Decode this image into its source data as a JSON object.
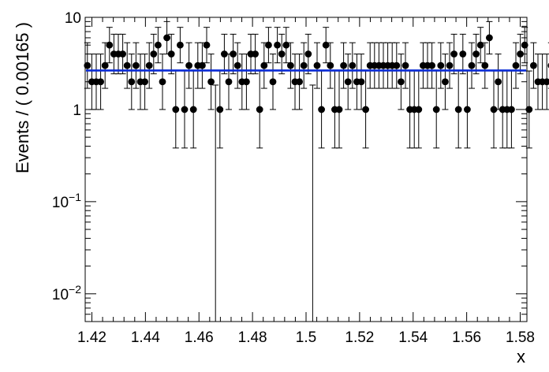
{
  "chart_data": {
    "type": "scatter",
    "title": "",
    "xlabel": "x",
    "ylabel": "Events / ( 0.00165 )",
    "xlim": [
      1.4175,
      1.5825
    ],
    "ylim": [
      0.005,
      10
    ],
    "yscale": "log",
    "grid": false,
    "x_tick_labels": [
      "1.42",
      "1.44",
      "1.46",
      "1.48",
      "1.5",
      "1.52",
      "1.54",
      "1.56",
      "1.58"
    ],
    "x_tick_values": [
      1.42,
      1.44,
      1.46,
      1.48,
      1.5,
      1.52,
      1.54,
      1.56,
      1.58
    ],
    "y_tick_labels": [
      {
        "base": "10",
        "exp": "",
        "value": 10
      },
      {
        "base": "1",
        "exp": "",
        "value": 1
      },
      {
        "base": "10",
        "exp": "−1",
        "value": 0.1
      },
      {
        "base": "10",
        "exp": "−2",
        "value": 0.01
      }
    ],
    "bin_width": 0.00165,
    "x_start": 1.418325,
    "counts": [
      3,
      2,
      2,
      2,
      3,
      5,
      4,
      4,
      4,
      3,
      2,
      3,
      2,
      2,
      3,
      4,
      5,
      2,
      6,
      4,
      1,
      5,
      1,
      3,
      1,
      3,
      3,
      5,
      2,
      0,
      1,
      4,
      2,
      4,
      3,
      2,
      2,
      4,
      4,
      1,
      3,
      5,
      2,
      5,
      4,
      5,
      3,
      2,
      2,
      3,
      4,
      0,
      3,
      1,
      5,
      3,
      1,
      1,
      3,
      2,
      3,
      2,
      2,
      1,
      3,
      3,
      3,
      3,
      3,
      3,
      3,
      2,
      3,
      1,
      1,
      1,
      3,
      3,
      3,
      1,
      3,
      2,
      3,
      4,
      1,
      4,
      1,
      3,
      4,
      5,
      3,
      6,
      1,
      2,
      1,
      1,
      1,
      3,
      4,
      5,
      1,
      3,
      2,
      2,
      2,
      3,
      2,
      1
    ],
    "series": [
      {
        "name": "",
        "kind": "fit",
        "y": 2.65,
        "color": "#0a2bd6"
      },
      {
        "name": "",
        "kind": "data",
        "color": "#000000"
      }
    ]
  }
}
